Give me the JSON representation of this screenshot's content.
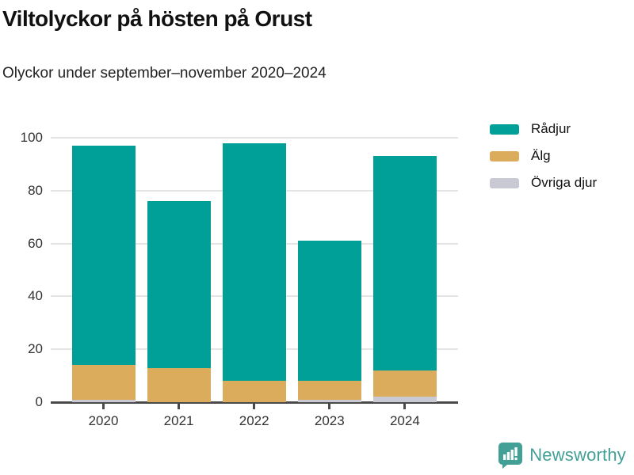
{
  "header": {
    "title": "Viltolyckor på hösten på Orust",
    "subtitle": "Olyckor under september–november 2020–2024"
  },
  "chart_data": {
    "type": "bar",
    "stacked": true,
    "categories": [
      "2020",
      "2021",
      "2022",
      "2023",
      "2024"
    ],
    "series": [
      {
        "name": "Rådjur",
        "color": "#00A099",
        "values": [
          83,
          63,
          90,
          53,
          81
        ]
      },
      {
        "name": "Älg",
        "color": "#DBAC5C",
        "values": [
          13,
          13,
          8,
          7,
          10
        ]
      },
      {
        "name": "Övriga djur",
        "color": "#C9C9D3",
        "values": [
          1,
          0,
          0,
          1,
          2
        ]
      }
    ],
    "totals": [
      97,
      76,
      98,
      61,
      93
    ],
    "xlabel": "",
    "ylabel": "",
    "ylim": [
      0,
      100
    ],
    "yticks": [
      0,
      20,
      40,
      60,
      80,
      100
    ],
    "grid": true,
    "legend_position": "top-right"
  },
  "footer": {
    "brand": "Newsworthy",
    "brand_color": "#42A096",
    "logo_icon": "bar-chart-speech-bubble-icon"
  },
  "colors": {
    "grid": "#e4e4e4",
    "axis": "#4a4a4a",
    "tick_text": "#333333",
    "title_text": "#111111"
  }
}
